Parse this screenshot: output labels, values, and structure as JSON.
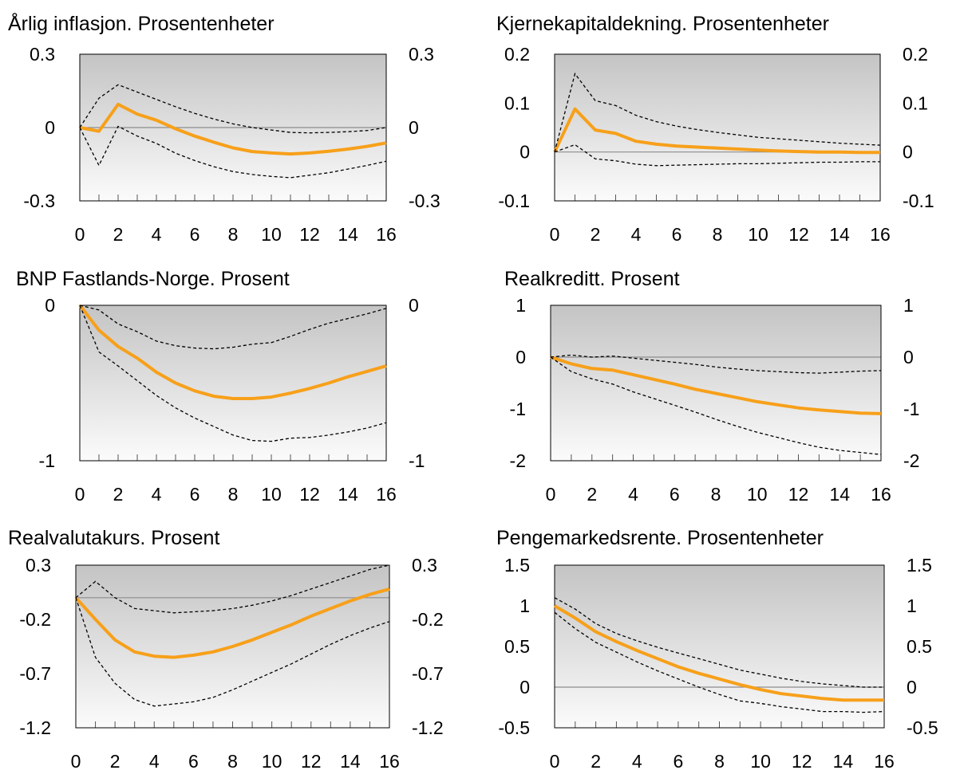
{
  "chart_data": [
    {
      "type": "line",
      "title": "Årlig inflasjon. Prosentenheter",
      "x": [
        0,
        1,
        2,
        3,
        4,
        5,
        6,
        7,
        8,
        9,
        10,
        11,
        12,
        13,
        14,
        15,
        16
      ],
      "xticks": [
        0,
        2,
        4,
        6,
        8,
        10,
        12,
        14,
        16
      ],
      "xtick_labels": [
        "0",
        "2",
        "4",
        "6",
        "8",
        "10",
        "12",
        "14",
        "16"
      ],
      "ylim": [
        -0.3,
        0.3
      ],
      "yticks": [
        -0.3,
        0,
        0.3
      ],
      "ytick_labels": [
        "-0.3",
        "0",
        "0.3"
      ],
      "series": [
        {
          "role": "estimate",
          "color": "#F7A01A",
          "values": [
            0,
            -0.015,
            0.095,
            0.055,
            0.03,
            -0.005,
            -0.035,
            -0.06,
            -0.083,
            -0.098,
            -0.104,
            -0.108,
            -0.104,
            -0.097,
            -0.088,
            -0.077,
            -0.063
          ]
        },
        {
          "role": "upper",
          "color": "#000000",
          "values": [
            0,
            0.12,
            0.175,
            0.145,
            0.115,
            0.085,
            0.058,
            0.035,
            0.015,
            0.0,
            -0.01,
            -0.02,
            -0.022,
            -0.02,
            -0.017,
            -0.012,
            0.0
          ]
        },
        {
          "role": "lower",
          "color": "#000000",
          "values": [
            0,
            -0.155,
            0.005,
            -0.035,
            -0.065,
            -0.105,
            -0.135,
            -0.16,
            -0.18,
            -0.192,
            -0.2,
            -0.205,
            -0.195,
            -0.185,
            -0.17,
            -0.155,
            -0.138
          ]
        }
      ]
    },
    {
      "type": "line",
      "title": "Kjernekapitaldekning. Prosentenheter",
      "x": [
        0,
        1,
        2,
        3,
        4,
        5,
        6,
        7,
        8,
        9,
        10,
        11,
        12,
        13,
        14,
        15,
        16
      ],
      "xticks": [
        0,
        2,
        4,
        6,
        8,
        10,
        12,
        14,
        16
      ],
      "xtick_labels": [
        "0",
        "2",
        "4",
        "6",
        "8",
        "10",
        "12",
        "14",
        "16"
      ],
      "ylim": [
        -0.1,
        0.2
      ],
      "yticks": [
        -0.1,
        0,
        0.1,
        0.2
      ],
      "ytick_labels": [
        "-0.1",
        "0",
        "0.1",
        "0.2"
      ],
      "series": [
        {
          "role": "estimate",
          "color": "#F7A01A",
          "values": [
            0,
            0.088,
            0.045,
            0.038,
            0.022,
            0.016,
            0.012,
            0.01,
            0.008,
            0.006,
            0.004,
            0.002,
            0.001,
            0.0,
            0.0,
            -0.001,
            -0.001
          ]
        },
        {
          "role": "upper",
          "color": "#000000",
          "values": [
            0,
            0.16,
            0.105,
            0.095,
            0.075,
            0.062,
            0.053,
            0.046,
            0.04,
            0.035,
            0.03,
            0.027,
            0.024,
            0.021,
            0.018,
            0.016,
            0.014
          ]
        },
        {
          "role": "lower",
          "color": "#000000",
          "values": [
            0,
            0.015,
            -0.014,
            -0.018,
            -0.025,
            -0.028,
            -0.027,
            -0.026,
            -0.025,
            -0.024,
            -0.024,
            -0.023,
            -0.022,
            -0.021,
            -0.021,
            -0.02,
            -0.02
          ]
        }
      ]
    },
    {
      "type": "line",
      "title": "BNP Fastlands-Norge. Prosent",
      "x": [
        0,
        1,
        2,
        3,
        4,
        5,
        6,
        7,
        8,
        9,
        10,
        11,
        12,
        13,
        14,
        15,
        16
      ],
      "xticks": [
        0,
        2,
        4,
        6,
        8,
        10,
        12,
        14,
        16
      ],
      "xtick_labels": [
        "0",
        "2",
        "4",
        "6",
        "8",
        "10",
        "12",
        "14",
        "16"
      ],
      "ylim": [
        -1,
        0
      ],
      "yticks": [
        -1,
        0
      ],
      "ytick_labels": [
        "-1",
        "0"
      ],
      "series": [
        {
          "role": "estimate",
          "color": "#F7A01A",
          "values": [
            0,
            -0.16,
            -0.265,
            -0.34,
            -0.43,
            -0.5,
            -0.55,
            -0.585,
            -0.6,
            -0.6,
            -0.59,
            -0.565,
            -0.535,
            -0.5,
            -0.46,
            -0.425,
            -0.39
          ]
        },
        {
          "role": "upper",
          "color": "#000000",
          "values": [
            0,
            -0.03,
            -0.12,
            -0.17,
            -0.23,
            -0.26,
            -0.275,
            -0.28,
            -0.27,
            -0.25,
            -0.24,
            -0.2,
            -0.155,
            -0.115,
            -0.085,
            -0.055,
            -0.02
          ]
        },
        {
          "role": "lower",
          "color": "#000000",
          "values": [
            0,
            -0.3,
            -0.39,
            -0.485,
            -0.58,
            -0.66,
            -0.725,
            -0.78,
            -0.835,
            -0.87,
            -0.875,
            -0.855,
            -0.85,
            -0.835,
            -0.815,
            -0.79,
            -0.755
          ]
        }
      ]
    },
    {
      "type": "line",
      "title": "Realkreditt. Prosent",
      "x": [
        0,
        1,
        2,
        3,
        4,
        5,
        6,
        7,
        8,
        9,
        10,
        11,
        12,
        13,
        14,
        15,
        16
      ],
      "xticks": [
        0,
        2,
        4,
        6,
        8,
        10,
        12,
        14,
        16
      ],
      "xtick_labels": [
        "0",
        "2",
        "4",
        "6",
        "8",
        "10",
        "12",
        "14",
        "16"
      ],
      "ylim": [
        -2,
        1
      ],
      "yticks": [
        -2,
        -1,
        0,
        1
      ],
      "ytick_labels": [
        "-2",
        "-1",
        "0",
        "1"
      ],
      "series": [
        {
          "role": "estimate",
          "color": "#F7A01A",
          "values": [
            0,
            -0.13,
            -0.22,
            -0.25,
            -0.34,
            -0.43,
            -0.52,
            -0.62,
            -0.7,
            -0.78,
            -0.86,
            -0.92,
            -0.98,
            -1.02,
            -1.05,
            -1.08,
            -1.09
          ]
        },
        {
          "role": "upper",
          "color": "#000000",
          "values": [
            0,
            0.04,
            0.0,
            0.02,
            -0.02,
            -0.06,
            -0.1,
            -0.14,
            -0.19,
            -0.23,
            -0.26,
            -0.28,
            -0.3,
            -0.31,
            -0.29,
            -0.27,
            -0.26
          ]
        },
        {
          "role": "lower",
          "color": "#000000",
          "values": [
            0,
            -0.28,
            -0.42,
            -0.52,
            -0.67,
            -0.8,
            -0.93,
            -1.06,
            -1.2,
            -1.33,
            -1.45,
            -1.55,
            -1.65,
            -1.74,
            -1.8,
            -1.84,
            -1.88
          ]
        }
      ]
    },
    {
      "type": "line",
      "title": "Realvalutakurs. Prosent",
      "x": [
        0,
        1,
        2,
        3,
        4,
        5,
        6,
        7,
        8,
        9,
        10,
        11,
        12,
        13,
        14,
        15,
        16
      ],
      "xticks": [
        0,
        2,
        4,
        6,
        8,
        10,
        12,
        14,
        16
      ],
      "xtick_labels": [
        "0",
        "2",
        "4",
        "6",
        "8",
        "10",
        "12",
        "14",
        "16"
      ],
      "ylim": [
        -1.2,
        0.3
      ],
      "yticks": [
        -1.2,
        -0.7,
        -0.2,
        0.3
      ],
      "ytick_labels": [
        "-1.2",
        "-0.7",
        "-0.2",
        "0.3"
      ],
      "series": [
        {
          "role": "estimate",
          "color": "#F7A01A",
          "values": [
            0,
            -0.2,
            -0.39,
            -0.5,
            -0.54,
            -0.55,
            -0.53,
            -0.5,
            -0.45,
            -0.39,
            -0.32,
            -0.25,
            -0.17,
            -0.1,
            -0.03,
            0.03,
            0.08
          ]
        },
        {
          "role": "upper",
          "color": "#000000",
          "values": [
            0,
            0.15,
            0.0,
            -0.1,
            -0.12,
            -0.14,
            -0.13,
            -0.12,
            -0.1,
            -0.07,
            -0.03,
            0.02,
            0.08,
            0.14,
            0.2,
            0.26,
            0.3
          ]
        },
        {
          "role": "lower",
          "color": "#000000",
          "values": [
            0,
            -0.55,
            -0.79,
            -0.94,
            -1.0,
            -0.98,
            -0.96,
            -0.92,
            -0.85,
            -0.77,
            -0.69,
            -0.61,
            -0.52,
            -0.43,
            -0.35,
            -0.28,
            -0.22
          ]
        }
      ]
    },
    {
      "type": "line",
      "title": "Pengemarkedsrente. Prosentenheter",
      "x": [
        0,
        1,
        2,
        3,
        4,
        5,
        6,
        7,
        8,
        9,
        10,
        11,
        12,
        13,
        14,
        15,
        16
      ],
      "xticks": [
        0,
        2,
        4,
        6,
        8,
        10,
        12,
        14,
        16
      ],
      "xtick_labels": [
        "0",
        "2",
        "4",
        "6",
        "8",
        "10",
        "12",
        "14",
        "16"
      ],
      "ylim": [
        -0.5,
        1.5
      ],
      "yticks": [
        -0.5,
        0,
        0.5,
        1,
        1.5
      ],
      "ytick_labels": [
        "-0.5",
        "0",
        "0.5",
        "1",
        "1.5"
      ],
      "series": [
        {
          "role": "estimate",
          "color": "#F7A01A",
          "values": [
            1.0,
            0.85,
            0.68,
            0.56,
            0.45,
            0.35,
            0.25,
            0.17,
            0.1,
            0.03,
            -0.03,
            -0.08,
            -0.11,
            -0.14,
            -0.16,
            -0.16,
            -0.16
          ]
        },
        {
          "role": "upper",
          "color": "#000000",
          "values": [
            1.1,
            0.96,
            0.78,
            0.66,
            0.57,
            0.49,
            0.42,
            0.35,
            0.28,
            0.21,
            0.16,
            0.11,
            0.07,
            0.04,
            0.02,
            0.0,
            0.0
          ]
        },
        {
          "role": "lower",
          "color": "#000000",
          "values": [
            0.92,
            0.72,
            0.55,
            0.43,
            0.31,
            0.2,
            0.1,
            0.0,
            -0.09,
            -0.17,
            -0.2,
            -0.24,
            -0.27,
            -0.3,
            -0.3,
            -0.31,
            -0.3
          ]
        }
      ]
    }
  ]
}
